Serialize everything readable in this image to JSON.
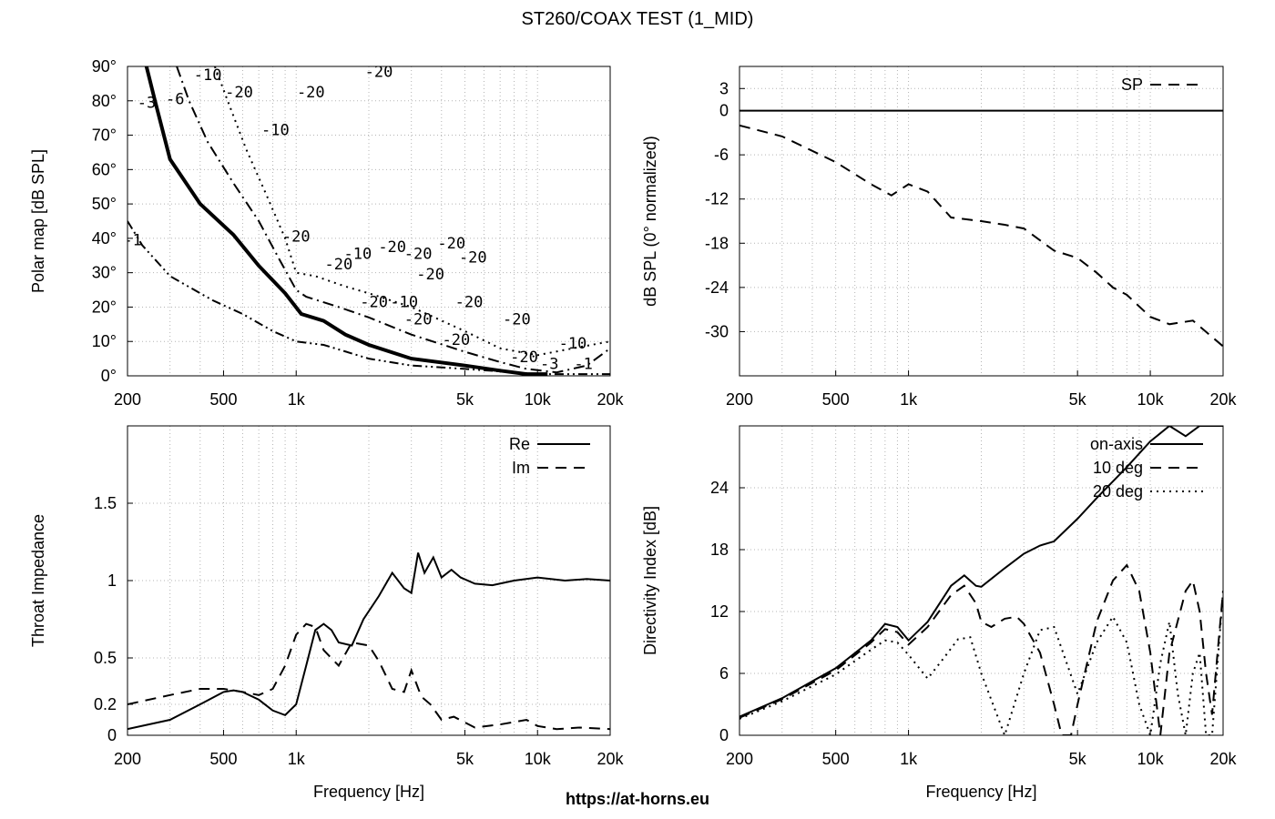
{
  "title": "ST260/COAX TEST (1_MID)",
  "footer": "https://at-horns.eu",
  "colors": {
    "line": "#000000",
    "grid": "#b4b4b4"
  },
  "chart_data": [
    {
      "id": "polar",
      "type": "contour",
      "ylabel": "Polar map [dB SPL]",
      "xlabel": "",
      "x_scale": "log",
      "xlim": [
        200,
        20000
      ],
      "ylim": [
        0,
        90
      ],
      "x_ticks": [
        200,
        500,
        1000,
        5000,
        10000,
        20000
      ],
      "x_tick_labels": [
        "200",
        "500",
        "1k",
        "5k",
        "10k",
        "20k"
      ],
      "y_ticks": [
        0,
        10,
        20,
        30,
        40,
        50,
        60,
        70,
        80,
        90
      ],
      "y_tick_labels": [
        "0°",
        "10°",
        "20°",
        "30°",
        "40°",
        "50°",
        "60°",
        "70°",
        "80°",
        "90°"
      ],
      "grid": true,
      "contours": [
        {
          "level": "-1",
          "style": "dash-dot-dot",
          "x": [
            200,
            230,
            300,
            450,
            600,
            800,
            1000,
            1300,
            2000,
            3000,
            5000,
            8000,
            10000,
            14000,
            20000
          ],
          "y": [
            45,
            38,
            29,
            22,
            18,
            13,
            10,
            9,
            5,
            3,
            2,
            1,
            0.5,
            0.5,
            0.5
          ]
        },
        {
          "level": "-3",
          "style": "thick",
          "x": [
            230,
            260,
            300,
            400,
            550,
            700,
            900,
            1050,
            1300,
            1600,
            2000,
            3000,
            5000,
            7000,
            9000,
            11000
          ],
          "y": [
            95,
            80,
            63,
            50,
            41,
            32,
            24,
            18,
            16,
            12,
            9,
            5,
            3,
            1.5,
            0.5,
            0.5
          ]
        },
        {
          "level": "-6",
          "style": "dash-dot",
          "x": [
            320,
            360,
            430,
            550,
            700,
            850,
            1000,
            1100,
            1500,
            2000,
            3000,
            5000,
            7000,
            9000,
            12000,
            16000,
            20000
          ],
          "y": [
            90,
            80,
            68,
            56,
            45,
            34,
            25,
            23,
            20,
            17,
            12,
            7,
            4,
            2,
            1,
            3,
            8
          ]
        },
        {
          "level": "-10",
          "style": "dotted",
          "x": [
            460,
            520,
            620,
            760,
            900,
            1000,
            1200,
            1600,
            2000,
            3000,
            5000,
            7000,
            10000,
            14000,
            20000
          ],
          "y": [
            90,
            80,
            66,
            52,
            40,
            30,
            29,
            26,
            24,
            20,
            13,
            8,
            6,
            8,
            10
          ]
        }
      ],
      "contour_labels": [
        {
          "text": "-3",
          "x": 240,
          "y": 78
        },
        {
          "text": "-6",
          "x": 315,
          "y": 79
        },
        {
          "text": "-10",
          "x": 430,
          "y": 86
        },
        {
          "text": "-20",
          "x": 580,
          "y": 81
        },
        {
          "text": "-20",
          "x": 1150,
          "y": 81
        },
        {
          "text": "-20",
          "x": 2200,
          "y": 87
        },
        {
          "text": "-10",
          "x": 820,
          "y": 70
        },
        {
          "text": "-1",
          "x": 210,
          "y": 38
        },
        {
          "text": "-20",
          "x": 1000,
          "y": 39
        },
        {
          "text": "-20",
          "x": 1500,
          "y": 31
        },
        {
          "text": "-10",
          "x": 1800,
          "y": 34
        },
        {
          "text": "-20",
          "x": 2500,
          "y": 36
        },
        {
          "text": "-20",
          "x": 3200,
          "y": 34
        },
        {
          "text": "-20",
          "x": 4400,
          "y": 37
        },
        {
          "text": "-20",
          "x": 5400,
          "y": 33
        },
        {
          "text": "-20",
          "x": 3600,
          "y": 28
        },
        {
          "text": "-20",
          "x": 2100,
          "y": 20
        },
        {
          "text": "-10",
          "x": 2800,
          "y": 20
        },
        {
          "text": "-20",
          "x": 5200,
          "y": 20
        },
        {
          "text": "-20",
          "x": 3200,
          "y": 15
        },
        {
          "text": "-20",
          "x": 8200,
          "y": 15
        },
        {
          "text": "-20",
          "x": 4600,
          "y": 9
        },
        {
          "text": "-20",
          "x": 8800,
          "y": 4
        },
        {
          "text": "-3",
          "x": 11200,
          "y": 2
        },
        {
          "text": "-10",
          "x": 14000,
          "y": 8
        },
        {
          "text": "-1",
          "x": 15500,
          "y": 2
        }
      ]
    },
    {
      "id": "spl",
      "type": "line",
      "ylabel": "dB SPL (0° normalized)",
      "xlabel": "",
      "x_scale": "log",
      "xlim": [
        200,
        20000
      ],
      "ylim": [
        -36,
        6
      ],
      "x_ticks": [
        200,
        500,
        1000,
        5000,
        10000,
        20000
      ],
      "x_tick_labels": [
        "200",
        "500",
        "1k",
        "5k",
        "10k",
        "20k"
      ],
      "y_ticks": [
        3,
        0,
        -6,
        -12,
        -18,
        -24,
        -30
      ],
      "y_tick_labels": [
        "3",
        "0",
        "-6",
        "-12",
        "-18",
        "-24",
        "-30"
      ],
      "grid": true,
      "legend": [
        {
          "name": "SP",
          "style": "dashed"
        }
      ],
      "legend_position": "top-right",
      "series": [
        {
          "style": "dashed",
          "x": [
            200,
            300,
            500,
            700,
            850,
            1000,
            1200,
            1500,
            2000,
            2500,
            3000,
            4000,
            5000,
            6000,
            7000,
            8000,
            10000,
            12000,
            15000,
            20000
          ],
          "y": [
            -2,
            -3.5,
            -7,
            -10,
            -11.5,
            -10,
            -11,
            -14.5,
            -15,
            -15.5,
            -16,
            -19,
            -20,
            -22,
            -24,
            -25,
            -28,
            -29,
            -28.5,
            -32
          ]
        },
        {
          "style": "solid",
          "x": [
            200,
            20000
          ],
          "y": [
            0,
            0
          ]
        }
      ]
    },
    {
      "id": "impedance",
      "type": "line",
      "ylabel": "Throat Impedance",
      "xlabel": "Frequency [Hz]",
      "x_scale": "log",
      "xlim": [
        200,
        20000
      ],
      "ylim": [
        0,
        2
      ],
      "x_ticks": [
        200,
        500,
        1000,
        5000,
        10000,
        20000
      ],
      "x_tick_labels": [
        "200",
        "500",
        "1k",
        "5k",
        "10k",
        "20k"
      ],
      "y_ticks": [
        0,
        0.2,
        0.5,
        1,
        1.5
      ],
      "y_tick_labels": [
        "0",
        "0.2",
        "0.5",
        "1",
        "1.5"
      ],
      "grid": true,
      "legend_position": "top-right",
      "series": [
        {
          "name": "Re",
          "style": "solid",
          "x": [
            200,
            300,
            400,
            500,
            550,
            600,
            700,
            800,
            900,
            1000,
            1100,
            1200,
            1300,
            1400,
            1500,
            1700,
            1900,
            2200,
            2500,
            2800,
            3000,
            3200,
            3400,
            3700,
            4000,
            4400,
            4800,
            5500,
            6500,
            8000,
            10000,
            13000,
            16000,
            20000
          ],
          "y": [
            0.04,
            0.1,
            0.2,
            0.28,
            0.29,
            0.28,
            0.23,
            0.16,
            0.13,
            0.2,
            0.45,
            0.68,
            0.72,
            0.68,
            0.6,
            0.58,
            0.75,
            0.9,
            1.05,
            0.95,
            0.92,
            1.18,
            1.05,
            1.15,
            1.02,
            1.07,
            1.02,
            0.98,
            0.97,
            1.0,
            1.02,
            1.0,
            1.01,
            1.0
          ]
        },
        {
          "name": "Im",
          "style": "dashed",
          "x": [
            200,
            300,
            400,
            500,
            600,
            700,
            800,
            900,
            1000,
            1100,
            1200,
            1300,
            1500,
            1700,
            2000,
            2200,
            2500,
            2800,
            3000,
            3300,
            3600,
            4000,
            4500,
            5500,
            7000,
            9000,
            10000,
            12000,
            15000,
            20000
          ],
          "y": [
            0.2,
            0.26,
            0.3,
            0.3,
            0.28,
            0.26,
            0.3,
            0.45,
            0.65,
            0.72,
            0.7,
            0.55,
            0.45,
            0.6,
            0.58,
            0.48,
            0.3,
            0.28,
            0.42,
            0.25,
            0.2,
            0.1,
            0.12,
            0.05,
            0.07,
            0.1,
            0.06,
            0.04,
            0.05,
            0.04
          ]
        }
      ]
    },
    {
      "id": "di",
      "type": "line",
      "ylabel": "Directivity Index [dB]",
      "xlabel": "Frequency [Hz]",
      "x_scale": "log",
      "xlim": [
        200,
        20000
      ],
      "ylim": [
        0,
        30
      ],
      "x_ticks": [
        200,
        500,
        1000,
        5000,
        10000,
        20000
      ],
      "x_tick_labels": [
        "200",
        "500",
        "1k",
        "5k",
        "10k",
        "20k"
      ],
      "y_ticks": [
        0,
        6,
        12,
        18,
        24
      ],
      "y_tick_labels": [
        "0",
        "6",
        "12",
        "18",
        "24"
      ],
      "grid": true,
      "legend_position": "top-right",
      "series": [
        {
          "name": "on-axis",
          "style": "solid",
          "x": [
            200,
            300,
            500,
            700,
            800,
            900,
            1000,
            1200,
            1500,
            1700,
            1900,
            2000,
            2500,
            3000,
            3500,
            4000,
            5000,
            6000,
            8000,
            10000,
            12000,
            14000,
            16000,
            20000
          ],
          "y": [
            1.8,
            3.6,
            6.5,
            9.2,
            10.8,
            10.5,
            9.2,
            11,
            14.5,
            15.5,
            14.5,
            14.4,
            16.2,
            17.6,
            18.4,
            18.8,
            21,
            23,
            26,
            28.5,
            30,
            29,
            30,
            30
          ]
        },
        {
          "name": "10 deg",
          "style": "dashed",
          "x": [
            200,
            300,
            500,
            700,
            800,
            900,
            1000,
            1200,
            1500,
            1700,
            1900,
            2000,
            2200,
            2500,
            2800,
            3000,
            3500,
            4000,
            4300,
            4700,
            5000,
            6000,
            7000,
            8000,
            9000,
            10000,
            11000,
            12000,
            14000,
            15000,
            16000,
            17000,
            18000,
            20000
          ],
          "y": [
            1.7,
            3.5,
            6.3,
            9,
            10.3,
            10,
            8.8,
            10.5,
            13.6,
            14.5,
            12.8,
            11,
            10.5,
            11.3,
            11.5,
            10.8,
            8,
            3,
            0,
            0,
            3,
            11,
            15,
            16.5,
            14,
            8,
            0,
            8,
            14,
            15,
            12,
            6,
            2,
            14
          ]
        },
        {
          "name": "20 deg",
          "style": "dotted",
          "x": [
            200,
            300,
            500,
            700,
            800,
            900,
            1000,
            1200,
            1400,
            1600,
            1800,
            2000,
            2500,
            3000,
            3500,
            4000,
            5000,
            6000,
            7000,
            8000,
            9000,
            10000,
            11000,
            12000,
            13000,
            14000,
            15000,
            16000,
            17000,
            18000,
            20000
          ],
          "y": [
            1.6,
            3.3,
            5.9,
            8.3,
            9.2,
            9,
            7.8,
            5.5,
            7.5,
            9.3,
            9.5,
            6,
            0,
            6,
            10.2,
            10.5,
            4,
            9,
            11.5,
            9,
            3,
            0,
            7,
            11,
            4,
            0,
            6,
            8,
            0,
            0,
            14
          ]
        }
      ]
    }
  ]
}
